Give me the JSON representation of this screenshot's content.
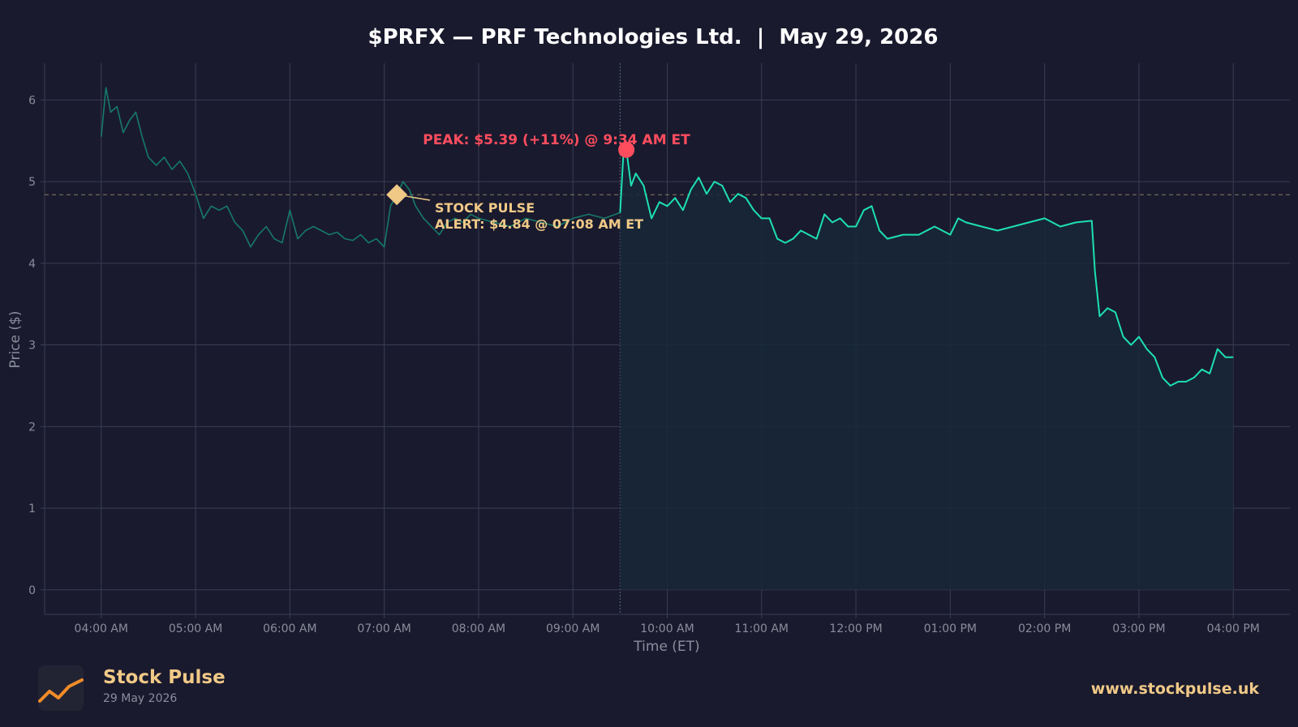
{
  "title": "$PRFX — PRF Technologies Ltd.  |  May 29, 2026",
  "colors": {
    "background": "#1a1a2e",
    "line": "#1de0b0",
    "premarket_line": "#167a68",
    "fill": "#182838",
    "peak": "#ff4d5e",
    "alert": "#f0c987",
    "grid": "#3a3d52",
    "axis_text": "#8a8d9a"
  },
  "chart_data": {
    "type": "line",
    "xlabel": "Time (ET)",
    "ylabel": "Price ($)",
    "x_ticks": [
      "04:00 AM",
      "05:00 AM",
      "06:00 AM",
      "07:00 AM",
      "08:00 AM",
      "09:00 AM",
      "10:00 AM",
      "11:00 AM",
      "12:00 PM",
      "01:00 PM",
      "02:00 PM",
      "03:00 PM",
      "04:00 PM"
    ],
    "y_ticks": [
      "0",
      "1",
      "2",
      "3",
      "4",
      "5",
      "6"
    ],
    "ylim": [
      -0.3,
      6.45
    ],
    "xlim_hours": [
      3.4,
      16.6
    ],
    "grid": true,
    "market_open_marker": "09:30 AM",
    "reference_line": 4.84,
    "series": [
      {
        "segment": "premarket",
        "x": [
          "04:00",
          "04:03",
          "04:06",
          "04:10",
          "04:14",
          "04:18",
          "04:22",
          "04:26",
          "04:30",
          "04:35",
          "04:40",
          "04:45",
          "04:50",
          "04:55",
          "05:00",
          "05:05",
          "05:10",
          "05:15",
          "05:20",
          "05:25",
          "05:30",
          "05:35",
          "05:40",
          "05:45",
          "05:50",
          "05:55",
          "06:00",
          "06:05",
          "06:10",
          "06:15",
          "06:20",
          "06:25",
          "06:30",
          "06:35",
          "06:40",
          "06:45",
          "06:50",
          "06:55",
          "07:00",
          "07:04",
          "07:08",
          "07:12",
          "07:16",
          "07:20",
          "07:25",
          "07:30",
          "07:35",
          "07:40",
          "07:45",
          "07:50",
          "07:55",
          "08:00",
          "08:10",
          "08:20",
          "08:30",
          "08:40",
          "08:50",
          "09:00",
          "09:10",
          "09:20",
          "09:30"
        ],
        "y": [
          5.55,
          6.15,
          5.85,
          5.92,
          5.6,
          5.75,
          5.85,
          5.55,
          5.3,
          5.2,
          5.3,
          5.15,
          5.25,
          5.1,
          4.85,
          4.55,
          4.7,
          4.65,
          4.7,
          4.5,
          4.4,
          4.2,
          4.35,
          4.45,
          4.3,
          4.25,
          4.65,
          4.3,
          4.4,
          4.45,
          4.4,
          4.35,
          4.38,
          4.3,
          4.28,
          4.35,
          4.25,
          4.3,
          4.2,
          4.7,
          4.84,
          5.0,
          4.9,
          4.7,
          4.55,
          4.45,
          4.35,
          4.5,
          4.55,
          4.5,
          4.6,
          4.55,
          4.5,
          4.45,
          4.55,
          4.5,
          4.45,
          4.55,
          4.6,
          4.55,
          4.62
        ]
      },
      {
        "segment": "regular",
        "x": [
          "09:30",
          "09:32",
          "09:34",
          "09:37",
          "09:40",
          "09:45",
          "09:50",
          "09:55",
          "10:00",
          "10:05",
          "10:10",
          "10:15",
          "10:20",
          "10:25",
          "10:30",
          "10:35",
          "10:40",
          "10:45",
          "10:50",
          "10:55",
          "11:00",
          "11:05",
          "11:10",
          "11:15",
          "11:20",
          "11:25",
          "11:30",
          "11:35",
          "11:40",
          "11:45",
          "11:50",
          "11:55",
          "12:00",
          "12:05",
          "12:10",
          "12:15",
          "12:20",
          "12:30",
          "12:40",
          "12:50",
          "13:00",
          "13:05",
          "13:10",
          "13:20",
          "13:30",
          "13:40",
          "13:50",
          "14:00",
          "14:10",
          "14:20",
          "14:30",
          "14:32",
          "14:35",
          "14:40",
          "14:45",
          "14:50",
          "14:55",
          "15:00",
          "15:05",
          "15:10",
          "15:15",
          "15:20",
          "15:25",
          "15:30",
          "15:35",
          "15:40",
          "15:45",
          "15:50",
          "15:55",
          "16:00"
        ],
        "y": [
          4.62,
          5.3,
          5.39,
          4.95,
          5.1,
          4.95,
          4.55,
          4.75,
          4.7,
          4.8,
          4.65,
          4.9,
          5.05,
          4.85,
          5.0,
          4.95,
          4.75,
          4.85,
          4.8,
          4.65,
          4.55,
          4.55,
          4.3,
          4.25,
          4.3,
          4.4,
          4.35,
          4.3,
          4.6,
          4.5,
          4.55,
          4.45,
          4.45,
          4.65,
          4.7,
          4.4,
          4.3,
          4.35,
          4.35,
          4.45,
          4.35,
          4.55,
          4.5,
          4.45,
          4.4,
          4.45,
          4.5,
          4.55,
          4.45,
          4.5,
          4.52,
          3.9,
          3.35,
          3.45,
          3.4,
          3.1,
          3.0,
          3.1,
          2.95,
          2.85,
          2.6,
          2.5,
          2.55,
          2.55,
          2.6,
          2.7,
          2.65,
          2.95,
          2.85,
          2.85
        ]
      }
    ],
    "annotations": {
      "peak_label": "PEAK: $5.39 (+11%) @ 9:34 AM ET",
      "peak": {
        "x": "09:34",
        "y": 5.39
      },
      "alert_label_line1": "STOCK PULSE",
      "alert_label_line2": "ALERT: $4.84 @ 07:08 AM ET",
      "alert": {
        "x": "07:08",
        "y": 4.84
      }
    }
  },
  "footer": {
    "brand": "Stock Pulse",
    "date": "29 May 2026",
    "url": "www.stockpulse.uk"
  }
}
